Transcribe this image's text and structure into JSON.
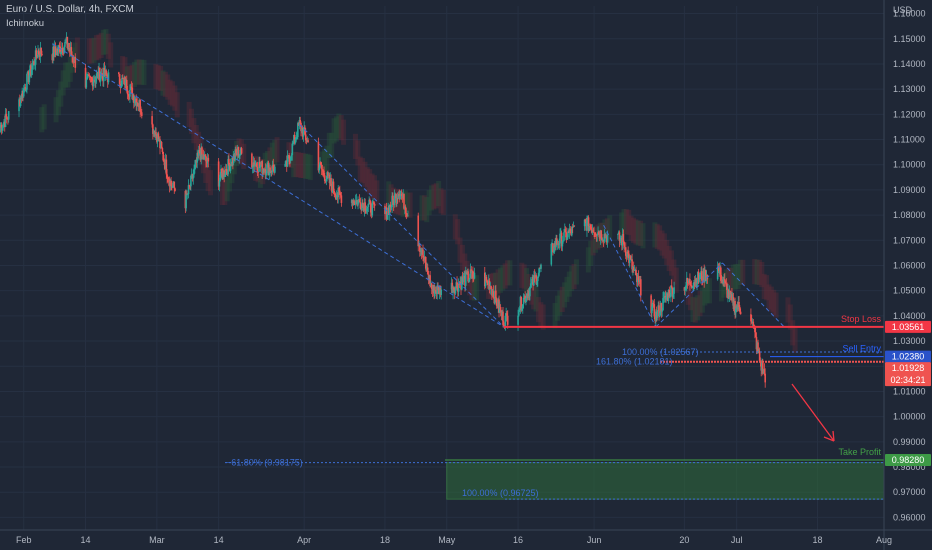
{
  "header": {
    "title": "Euro / U.S. Dollar, 4h, FXCM",
    "indicator": "Ichimoku",
    "currency": "USD"
  },
  "colors": {
    "background": "#1f2736",
    "bull": "#26a69a",
    "bear": "#ef5350",
    "trend_line": "#3d6fd6",
    "stop_loss": "#f23645",
    "sell_entry": "#2962ff",
    "take_profit": "#43a047",
    "cloud_bear": "#6b2a36",
    "cloud_bull": "#2b5a3a"
  },
  "chart_data": {
    "type": "candlestick",
    "ylim": [
      0.955,
      1.163
    ],
    "xlim": [
      "2022-01-27",
      "2022-08-01"
    ],
    "y_ticks": [
      "1.16000",
      "1.15000",
      "1.14000",
      "1.13000",
      "1.12000",
      "1.11000",
      "1.10000",
      "1.09000",
      "1.08000",
      "1.07000",
      "1.06000",
      "1.05000",
      "1.04000",
      "1.03000",
      "1.02000",
      "1.01000",
      "1.00000",
      "0.99000",
      "0.98000",
      "0.97000",
      "0.96000"
    ],
    "x_ticks": [
      {
        "label": "Feb",
        "date": "2022-02-01"
      },
      {
        "label": "14",
        "date": "2022-02-14"
      },
      {
        "label": "Mar",
        "date": "2022-03-01"
      },
      {
        "label": "14",
        "date": "2022-03-14"
      },
      {
        "label": "Apr",
        "date": "2022-04-01"
      },
      {
        "label": "18",
        "date": "2022-04-18"
      },
      {
        "label": "May",
        "date": "2022-05-01"
      },
      {
        "label": "16",
        "date": "2022-05-16"
      },
      {
        "label": "Jun",
        "date": "2022-06-01"
      },
      {
        "label": "20",
        "date": "2022-06-20"
      },
      {
        "label": "Jul",
        "date": "2022-07-01"
      },
      {
        "label": "18",
        "date": "2022-07-18"
      },
      {
        "label": "Aug",
        "date": "2022-08-01"
      }
    ],
    "price_path": [
      [
        "2022-01-27",
        1.115
      ],
      [
        "2022-01-31",
        1.125
      ],
      [
        "2022-02-04",
        1.145
      ],
      [
        "2022-02-07",
        1.144
      ],
      [
        "2022-02-10",
        1.148
      ],
      [
        "2022-02-14",
        1.132
      ],
      [
        "2022-02-17",
        1.136
      ],
      [
        "2022-02-22",
        1.133
      ],
      [
        "2022-02-25",
        1.125
      ],
      [
        "2022-03-01",
        1.112
      ],
      [
        "2022-03-04",
        1.092
      ],
      [
        "2022-03-07",
        1.085
      ],
      [
        "2022-03-10",
        1.105
      ],
      [
        "2022-03-14",
        1.094
      ],
      [
        "2022-03-18",
        1.105
      ],
      [
        "2022-03-23",
        1.099
      ],
      [
        "2022-03-28",
        1.098
      ],
      [
        "2022-03-31",
        1.116
      ],
      [
        "2022-04-04",
        1.1
      ],
      [
        "2022-04-08",
        1.088
      ],
      [
        "2022-04-13",
        1.085
      ],
      [
        "2022-04-18",
        1.08
      ],
      [
        "2022-04-21",
        1.09
      ],
      [
        "2022-04-25",
        1.07
      ],
      [
        "2022-04-28",
        1.05
      ],
      [
        "2022-05-03",
        1.052
      ],
      [
        "2022-05-06",
        1.056
      ],
      [
        "2022-05-10",
        1.053
      ],
      [
        "2022-05-13",
        1.038
      ],
      [
        "2022-05-16",
        1.043
      ],
      [
        "2022-05-20",
        1.056
      ],
      [
        "2022-05-24",
        1.069
      ],
      [
        "2022-05-30",
        1.077
      ],
      [
        "2022-06-03",
        1.072
      ],
      [
        "2022-06-07",
        1.07
      ],
      [
        "2022-06-10",
        1.054
      ],
      [
        "2022-06-14",
        1.04
      ],
      [
        "2022-06-17",
        1.05
      ],
      [
        "2022-06-21",
        1.053
      ],
      [
        "2022-06-24",
        1.056
      ],
      [
        "2022-06-27",
        1.059
      ],
      [
        "2022-06-30",
        1.045
      ],
      [
        "2022-07-04",
        1.04
      ],
      [
        "2022-07-06",
        1.021
      ],
      [
        "2022-07-07",
        1.016
      ]
    ],
    "trend_lines": [
      [
        [
          "2022-02-07",
          1.148
        ],
        [
          "2022-05-13",
          1.0356
        ]
      ],
      [
        [
          "2022-03-31",
          1.116
        ],
        [
          "2022-05-13",
          1.0356
        ]
      ],
      [
        [
          "2022-06-03",
          1.076
        ],
        [
          "2022-06-14",
          1.0356
        ]
      ],
      [
        [
          "2022-06-14",
          1.0356
        ],
        [
          "2022-06-28",
          1.061
        ]
      ],
      [
        [
          "2022-06-28",
          1.061
        ],
        [
          "2022-07-11",
          1.0356
        ]
      ]
    ],
    "levels": [
      {
        "name": "Stop Loss",
        "value": 1.03561,
        "label": "1.03561",
        "color": "#f23645"
      },
      {
        "name": "Sell Entry",
        "value": 1.0238,
        "label": "1.02380",
        "color": "#2962ff"
      },
      {
        "name": "Take Profit",
        "value": 0.9828,
        "label": "0.98280",
        "color": "#43a047"
      }
    ],
    "current_price": {
      "value": 1.01928,
      "label": "1.01928",
      "countdown": "02:34:21"
    },
    "annotations": {
      "stop_loss": "Stop Loss",
      "sell_entry": "Sell Entry",
      "take_profit": "Take Profit",
      "fib_100": "100.00% (1.02567)",
      "fib_161": "161.80% (1.02181)",
      "fib_neg61": "−61.80% (0.98175)",
      "fib_100b": "100.00% (0.96725)"
    },
    "take_profit_zone": {
      "from_date": "2022-05-01",
      "top": 0.98175,
      "bottom": 0.96725
    }
  }
}
